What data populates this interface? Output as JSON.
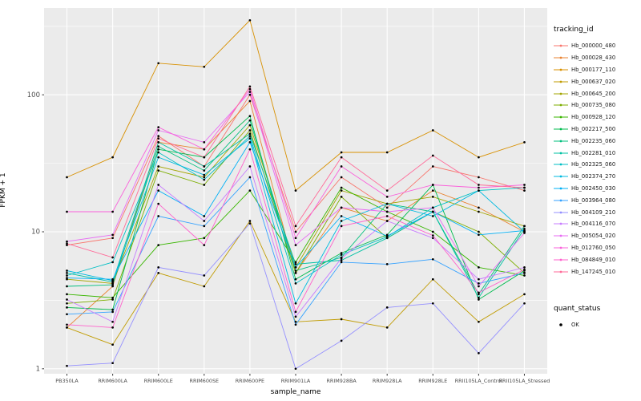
{
  "chart_data": {
    "type": "line",
    "title": "",
    "xlabel": "sample_name",
    "ylabel": "FPKM + 1",
    "y_scale": "log10",
    "y_ticks": [
      1,
      10,
      100
    ],
    "y_minor_ticks": [
      3.162,
      31.62,
      316.2
    ],
    "ylim": [
      0.92,
      430
    ],
    "panel_bg": "#EBEBEB",
    "grid_color": "#FFFFFF",
    "point_color": "#000000",
    "legend_title": "tracking_id",
    "legend2_title": "quant_status",
    "legend2_items": [
      {
        "label": "OK",
        "shape": "point",
        "color": "#000000"
      }
    ],
    "categories": [
      "PB350LA",
      "RRIM600LA",
      "RRIM600LE",
      "RRIM600SE",
      "RRIM600PE",
      "RRIM901LA",
      "RRIM928BA",
      "RRIM928LA",
      "RRIM928LE",
      "RRII105LA_Control",
      "RRII105LA_Stressed"
    ],
    "series": [
      {
        "name": "Hb_000000_480",
        "color": "#F8766D",
        "values": [
          8,
          9,
          50,
          30,
          100,
          10,
          25,
          15,
          30,
          25,
          20
        ]
      },
      {
        "name": "Hb_000028_430",
        "color": "#EA8331",
        "values": [
          2,
          4,
          45,
          40,
          90,
          5,
          15,
          12,
          20,
          15,
          10
        ]
      },
      {
        "name": "Hb_000177_110",
        "color": "#D89000",
        "values": [
          25,
          35,
          170,
          160,
          350,
          20,
          38,
          38,
          55,
          35,
          45
        ]
      },
      {
        "name": "Hb_000637_020",
        "color": "#C09B00",
        "values": [
          2,
          1.5,
          5,
          4,
          12,
          2.2,
          2.3,
          2,
          4.5,
          2.2,
          3.5
        ]
      },
      {
        "name": "Hb_000645_200",
        "color": "#A3A500",
        "values": [
          4.5,
          4.2,
          30,
          25,
          60,
          5.5,
          20,
          16,
          18,
          14,
          11
        ]
      },
      {
        "name": "Hb_000735_080",
        "color": "#7CAE00",
        "values": [
          3,
          3.2,
          28,
          22,
          55,
          5,
          18,
          9,
          14,
          10,
          5
        ]
      },
      {
        "name": "Hb_000928_120",
        "color": "#39B600",
        "values": [
          3.5,
          3.3,
          8,
          9,
          20,
          6,
          21,
          14,
          10,
          5.5,
          4.8
        ]
      },
      {
        "name": "Hb_002217_500",
        "color": "#00BB4E",
        "values": [
          2.8,
          2.7,
          40,
          35,
          70,
          4.5,
          7,
          9.5,
          22,
          3.2,
          5.2
        ]
      },
      {
        "name": "Hb_002235_060",
        "color": "#00BF7D",
        "values": [
          4,
          4.1,
          42,
          28,
          65,
          5.2,
          6.5,
          16,
          14,
          3.5,
          11
        ]
      },
      {
        "name": "Hb_002281_010",
        "color": "#00C1A3",
        "values": [
          5,
          4.3,
          45,
          30,
          52,
          5.8,
          6.2,
          9,
          14,
          3.3,
          10.5
        ]
      },
      {
        "name": "Hb_002325_060",
        "color": "#00BFC4",
        "values": [
          4.8,
          6,
          38,
          24,
          50,
          4.2,
          6.8,
          9.2,
          15,
          20,
          21
        ]
      },
      {
        "name": "Hb_002374_270",
        "color": "#00BAE0",
        "values": [
          5.2,
          4.4,
          35,
          26,
          48,
          3,
          12,
          16,
          13,
          20,
          10
        ]
      },
      {
        "name": "Hb_002450_030",
        "color": "#00B0F6",
        "values": [
          4.6,
          4.5,
          20,
          13,
          45,
          5.5,
          13,
          9.3,
          14,
          9.5,
          10.2
        ]
      },
      {
        "name": "Hb_003964_080",
        "color": "#35A2FF",
        "values": [
          2.5,
          2.6,
          13,
          11,
          25,
          2.1,
          6,
          5.8,
          6.3,
          4.2,
          5
        ]
      },
      {
        "name": "Hb_004109_210",
        "color": "#9590FF",
        "values": [
          1.05,
          1.1,
          5.5,
          4.8,
          11.5,
          1,
          1.6,
          2.8,
          3,
          1.3,
          3
        ]
      },
      {
        "name": "Hb_004116_070",
        "color": "#C77CFF",
        "values": [
          3.2,
          2.2,
          22,
          12,
          30,
          2.4,
          6.4,
          12,
          9,
          4.5,
          5.5
        ]
      },
      {
        "name": "Hb_005054_020",
        "color": "#E76BF3",
        "values": [
          8.5,
          9.5,
          55,
          45,
          105,
          8,
          15,
          14,
          15,
          4,
          9.8
        ]
      },
      {
        "name": "Hb_012760_050",
        "color": "#FA62DB",
        "values": [
          14,
          14,
          58,
          40,
          110,
          9,
          30,
          18,
          22,
          21,
          22
        ]
      },
      {
        "name": "Hb_084849_010",
        "color": "#FF61CC",
        "values": [
          2.1,
          2,
          16,
          8,
          40,
          2.6,
          11,
          13,
          9.4,
          3.6,
          5.3
        ]
      },
      {
        "name": "Hb_147245_010",
        "color": "#FF6A98",
        "values": [
          8.2,
          6.5,
          48,
          35,
          115,
          11,
          35,
          20,
          36,
          22,
          21
        ]
      }
    ]
  }
}
